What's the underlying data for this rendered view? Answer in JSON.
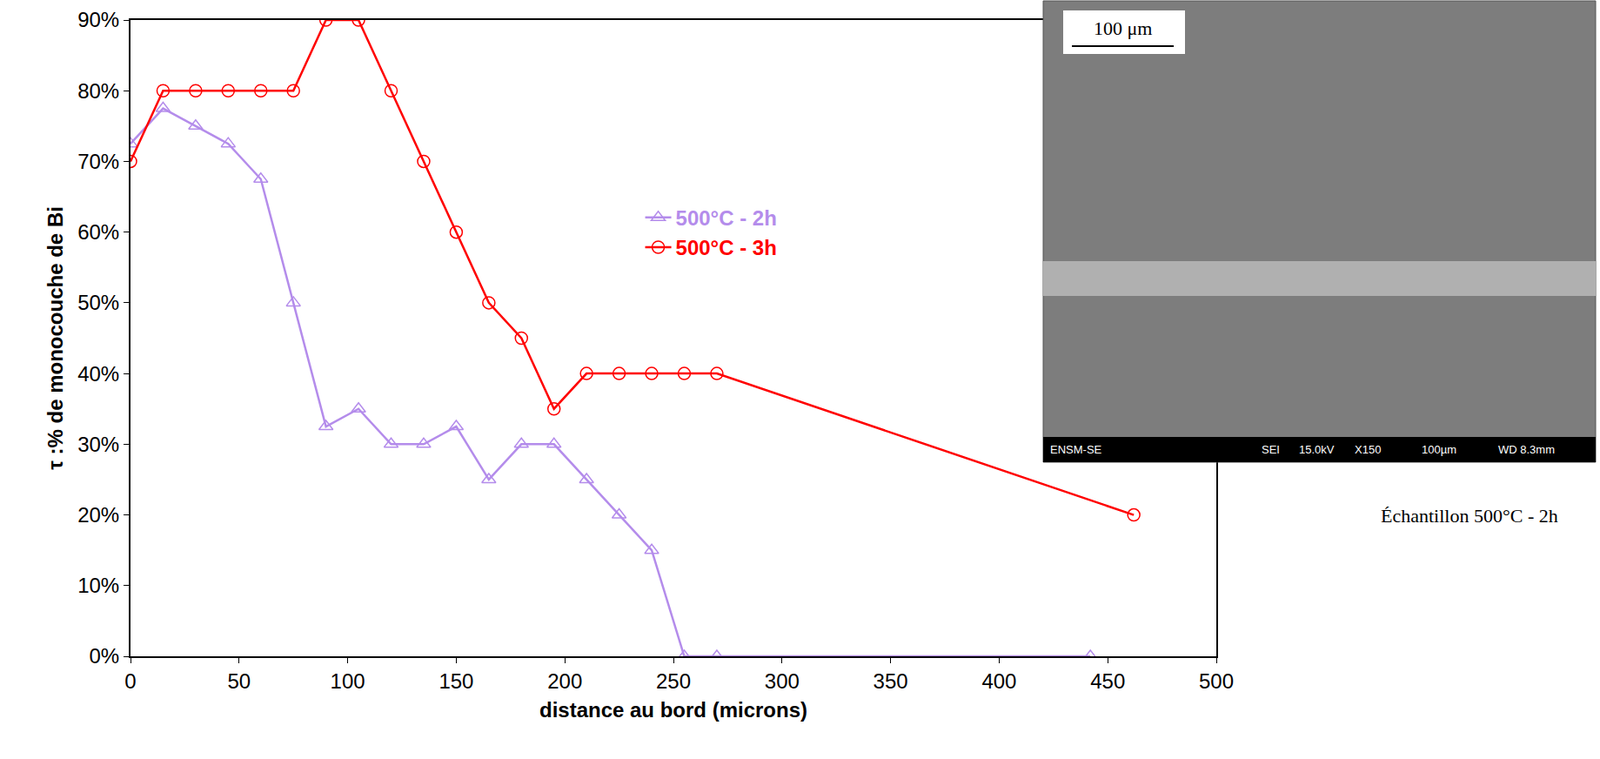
{
  "chart_data": {
    "type": "line",
    "xlabel": "distance au bord (microns)",
    "ylabel": "τ :% de monocouche de Bi",
    "xlim": [
      0,
      500
    ],
    "xticks": [
      0,
      50,
      100,
      150,
      200,
      250,
      300,
      350,
      400,
      450,
      500
    ],
    "ylim": [
      0,
      90
    ],
    "yticks": [
      {
        "value": 0,
        "label": "0%"
      },
      {
        "value": 10,
        "label": "10%"
      },
      {
        "value": 20,
        "label": "20%"
      },
      {
        "value": 30,
        "label": "30%"
      },
      {
        "value": 40,
        "label": "40%"
      },
      {
        "value": 50,
        "label": "50%"
      },
      {
        "value": 60,
        "label": "60%"
      },
      {
        "value": 70,
        "label": "70%"
      },
      {
        "value": 80,
        "label": "80%"
      },
      {
        "value": 90,
        "label": "90%"
      }
    ],
    "grid": false,
    "legend": "center",
    "series": [
      {
        "name": "500°C - 2h",
        "color": "#b48ceb",
        "marker": "triangle-up-open",
        "line_style": "solid",
        "x": [
          0,
          15,
          30,
          45,
          60,
          75,
          90,
          105,
          120,
          135,
          150,
          165,
          180,
          195,
          210,
          225,
          240,
          255,
          270,
          442
        ],
        "values": [
          72.5,
          77.5,
          75,
          72.5,
          67.5,
          50,
          32.5,
          35,
          30,
          30,
          32.5,
          25,
          30,
          30,
          25,
          20,
          15,
          0,
          0,
          0
        ]
      },
      {
        "name": "500°C - 3h",
        "color": "#ff0000",
        "marker": "circle-open",
        "line_style": "solid",
        "x": [
          0,
          15,
          30,
          45,
          60,
          75,
          90,
          105,
          120,
          135,
          150,
          165,
          180,
          195,
          210,
          225,
          240,
          255,
          270,
          462
        ],
        "values": [
          70,
          80,
          80,
          80,
          80,
          80,
          90,
          90,
          80,
          70,
          60,
          50,
          45,
          35,
          40,
          40,
          40,
          40,
          40,
          20
        ]
      }
    ],
    "inset": {
      "scale_label": "100 μm",
      "footer": [
        "ENSM-SE",
        "SEI",
        "15.0kV",
        "X150",
        "100µm",
        "WD 8.3mm"
      ],
      "caption": "Échantillon 500°C - 2h"
    }
  }
}
